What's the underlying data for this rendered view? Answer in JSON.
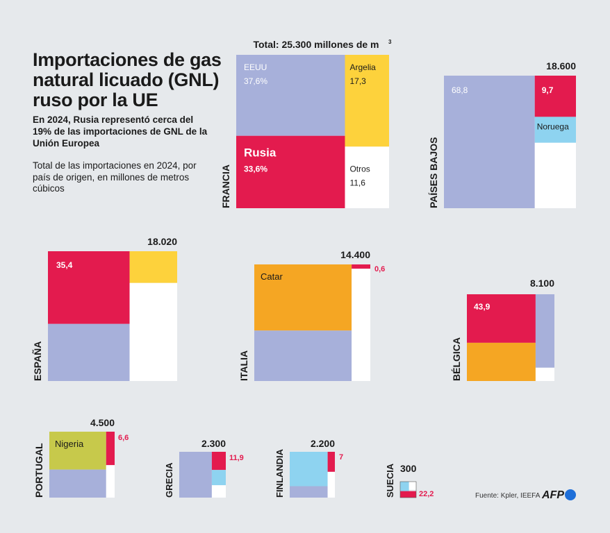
{
  "title": "Importaciones de gas natural licuado (GNL) ruso por la UE",
  "subtitle": "En 2024, Rusia representó cerca del 19% de las importaciones de GNL de la Unión Europea",
  "note": "Total de las importaciones en 2024,  por país de origen, en millones de metros cúbicos",
  "source": "Fuente: Kpler, IEEFA",
  "logo": "AFP",
  "colors": {
    "EEUU": "#a7b0da",
    "Rusia": "#e31b4e",
    "Argelia": "#fdd23c",
    "Catar": "#f5a623",
    "Noruega": "#8ed3f0",
    "Nigeria": "#c7c94b",
    "Otros": "#ffffff",
    "text_red": "#e31b4e"
  },
  "chart_data": {
    "type": "treemap",
    "unit": "millones de m³",
    "countries": [
      {
        "name": "FRANCIA",
        "total": 25300,
        "total_label": "Total: 25.300 millones de m³",
        "segments": [
          {
            "source": "EEUU",
            "value": 37.6,
            "name_label": "EEUU",
            "value_label": "37,6%"
          },
          {
            "source": "Argelia",
            "value": 17.3,
            "name_label": "Argelia",
            "value_label": "17,3"
          },
          {
            "source": "Rusia",
            "value": 33.6,
            "name_label": "Rusia",
            "value_label": "33,6%"
          },
          {
            "source": "Otros",
            "value": 11.6,
            "name_label": "Otros",
            "value_label": "11,6"
          }
        ]
      },
      {
        "name": "PAÍSES BAJOS",
        "total": 18600,
        "total_label": "18.600",
        "segments": [
          {
            "source": "EEUU",
            "value": 68.8,
            "value_label": "68,8"
          },
          {
            "source": "Rusia",
            "value": 9.7,
            "value_label": "9,7"
          },
          {
            "source": "Noruega",
            "value": 6.1,
            "name_label": "Noruega"
          },
          {
            "source": "Otros",
            "value": 15.4
          }
        ]
      },
      {
        "name": "ESPAÑA",
        "total": 18020,
        "total_label": "18.020",
        "segments": [
          {
            "source": "Rusia",
            "value": 35.4,
            "value_label": "35,4"
          },
          {
            "source": "EEUU",
            "value": 27.8
          },
          {
            "source": "Argelia",
            "value": 9.0
          },
          {
            "source": "Otros",
            "value": 27.8
          }
        ]
      },
      {
        "name": "ITALIA",
        "total": 14400,
        "total_label": "14.400",
        "segments": [
          {
            "source": "Catar",
            "value": 47.6,
            "name_label": "Catar"
          },
          {
            "source": "EEUU",
            "value": 36.3
          },
          {
            "source": "Rusia",
            "value": 0.6,
            "value_label": "0,6"
          },
          {
            "source": "Otros",
            "value": 15.5
          }
        ]
      },
      {
        "name": "BÉLGICA",
        "total": 8100,
        "total_label": "8.100",
        "segments": [
          {
            "source": "Rusia",
            "value": 43.9,
            "value_label": "43,9"
          },
          {
            "source": "Catar",
            "value": 34.6
          },
          {
            "source": "EEUU",
            "value": 18.2
          },
          {
            "source": "Otros",
            "value": 3.3
          }
        ]
      },
      {
        "name": "PORTUGAL",
        "total": 4500,
        "total_label": "4.500",
        "segments": [
          {
            "source": "Nigeria",
            "value": 50.0,
            "name_label": "Nigeria"
          },
          {
            "source": "EEUU",
            "value": 37.0
          },
          {
            "source": "Rusia",
            "value": 6.6,
            "value_label": "6,6"
          },
          {
            "source": "Otros",
            "value": 6.4
          }
        ]
      },
      {
        "name": "GRECIA",
        "total": 2300,
        "total_label": "2.300",
        "segments": [
          {
            "source": "EEUU",
            "value": 70.0
          },
          {
            "source": "Rusia",
            "value": 11.9,
            "value_label": "11,9"
          },
          {
            "source": "Noruega",
            "value": 10.0
          },
          {
            "source": "Otros",
            "value": 8.1
          }
        ]
      },
      {
        "name": "FINLANDIA",
        "total": 2200,
        "total_label": "2.200",
        "segments": [
          {
            "source": "Noruega",
            "value": 63.0
          },
          {
            "source": "EEUU",
            "value": 21.0
          },
          {
            "source": "Rusia",
            "value": 7.0,
            "value_label": "7"
          },
          {
            "source": "Otros",
            "value": 9.0
          }
        ]
      },
      {
        "name": "SUECIA",
        "total": 300,
        "total_label": "300",
        "segments": [
          {
            "source": "Noruega",
            "value": 55.0
          },
          {
            "source": "Otros",
            "value": 22.8
          },
          {
            "source": "Rusia",
            "value": 22.2,
            "value_label": "22,2"
          }
        ]
      }
    ]
  }
}
